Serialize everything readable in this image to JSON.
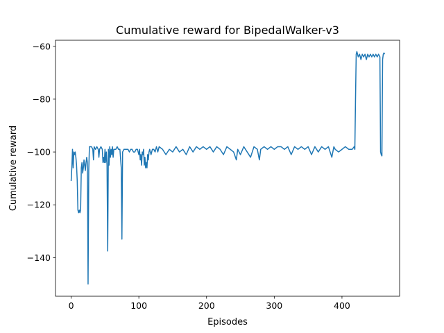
{
  "chart_data": {
    "type": "line",
    "title": "Cumulative reward for BipedalWalker-v3",
    "xlabel": "Episodes",
    "ylabel": "Cumulative reward",
    "xlim": [
      -23.1,
      485.1
    ],
    "ylim": [
      -154.6,
      -57.7
    ],
    "xticks": [
      0,
      100,
      200,
      300,
      400
    ],
    "yticks": [
      -140,
      -120,
      -100,
      -80,
      -60
    ],
    "xtick_labels": [
      "0",
      "100",
      "200",
      "300",
      "400"
    ],
    "ytick_labels": [
      "−140",
      "−120",
      "−100",
      "−80",
      "−60"
    ],
    "grid": false,
    "legend": "none",
    "series": [
      {
        "color": "#1f77b4",
        "points": [
          [
            0,
            -111
          ],
          [
            1,
            -106
          ],
          [
            2,
            -99
          ],
          [
            3,
            -106
          ],
          [
            4,
            -100
          ],
          [
            5,
            -101
          ],
          [
            6,
            -100
          ],
          [
            7,
            -102
          ],
          [
            8,
            -105
          ],
          [
            9,
            -111
          ],
          [
            10,
            -122
          ],
          [
            11,
            -123
          ],
          [
            12,
            -122
          ],
          [
            13,
            -123
          ],
          [
            14,
            -122
          ],
          [
            15,
            -106
          ],
          [
            16,
            -104
          ],
          [
            17,
            -108
          ],
          [
            18,
            -106
          ],
          [
            19,
            -103
          ],
          [
            20,
            -105
          ],
          [
            21,
            -107
          ],
          [
            22,
            -104
          ],
          [
            23,
            -102
          ],
          [
            24,
            -104
          ],
          [
            25,
            -150
          ],
          [
            26,
            -107
          ],
          [
            27,
            -98
          ],
          [
            28,
            -98
          ],
          [
            30,
            -98
          ],
          [
            32,
            -99
          ],
          [
            33,
            -103
          ],
          [
            34,
            -98
          ],
          [
            36,
            -99
          ],
          [
            38,
            -98
          ],
          [
            40,
            -99
          ],
          [
            41,
            -102
          ],
          [
            42,
            -99
          ],
          [
            44,
            -98
          ],
          [
            46,
            -99
          ],
          [
            47,
            -104
          ],
          [
            48,
            -102
          ],
          [
            49,
            -104
          ],
          [
            50,
            -99
          ],
          [
            51,
            -104
          ],
          [
            52,
            -100
          ],
          [
            53,
            -105
          ],
          [
            54,
            -137.5
          ],
          [
            55,
            -99
          ],
          [
            56,
            -105
          ],
          [
            57,
            -98
          ],
          [
            58,
            -102
          ],
          [
            59,
            -99
          ],
          [
            60,
            -101
          ],
          [
            61,
            -98
          ],
          [
            62,
            -102
          ],
          [
            63,
            -99
          ],
          [
            64,
            -99
          ],
          [
            66,
            -99
          ],
          [
            68,
            -98
          ],
          [
            70,
            -99
          ],
          [
            72,
            -99
          ],
          [
            74,
            -106
          ],
          [
            75,
            -133
          ],
          [
            76,
            -100
          ],
          [
            78,
            -99
          ],
          [
            80,
            -99
          ],
          [
            82,
            -99
          ],
          [
            84,
            -99
          ],
          [
            86,
            -100
          ],
          [
            88,
            -99
          ],
          [
            90,
            -99
          ],
          [
            92,
            -100
          ],
          [
            94,
            -100
          ],
          [
            96,
            -99
          ],
          [
            98,
            -99
          ],
          [
            100,
            -101
          ],
          [
            101,
            -99
          ],
          [
            102,
            -103
          ],
          [
            103,
            -101
          ],
          [
            104,
            -105
          ],
          [
            105,
            -100
          ],
          [
            106,
            -101
          ],
          [
            107,
            -99
          ],
          [
            108,
            -105
          ],
          [
            109,
            -102
          ],
          [
            110,
            -106
          ],
          [
            111,
            -104
          ],
          [
            112,
            -106
          ],
          [
            113,
            -101
          ],
          [
            114,
            -103
          ],
          [
            115,
            -100
          ],
          [
            116,
            -99
          ],
          [
            118,
            -101
          ],
          [
            120,
            -99
          ],
          [
            122,
            -99
          ],
          [
            124,
            -100
          ],
          [
            126,
            -98
          ],
          [
            128,
            -100
          ],
          [
            130,
            -98
          ],
          [
            135,
            -99
          ],
          [
            140,
            -101
          ],
          [
            145,
            -99
          ],
          [
            150,
            -100
          ],
          [
            155,
            -98
          ],
          [
            160,
            -100
          ],
          [
            165,
            -99
          ],
          [
            170,
            -101
          ],
          [
            175,
            -98
          ],
          [
            180,
            -100
          ],
          [
            185,
            -98
          ],
          [
            190,
            -99
          ],
          [
            195,
            -98
          ],
          [
            200,
            -99
          ],
          [
            205,
            -98
          ],
          [
            210,
            -100
          ],
          [
            215,
            -98
          ],
          [
            220,
            -99
          ],
          [
            225,
            -101
          ],
          [
            230,
            -98
          ],
          [
            235,
            -99
          ],
          [
            240,
            -100
          ],
          [
            244,
            -103
          ],
          [
            246,
            -99
          ],
          [
            250,
            -101
          ],
          [
            255,
            -98
          ],
          [
            260,
            -100
          ],
          [
            265,
            -102
          ],
          [
            270,
            -98
          ],
          [
            275,
            -99
          ],
          [
            278,
            -103
          ],
          [
            280,
            -99
          ],
          [
            285,
            -98
          ],
          [
            290,
            -99
          ],
          [
            295,
            -98
          ],
          [
            300,
            -99
          ],
          [
            305,
            -98
          ],
          [
            310,
            -98
          ],
          [
            315,
            -99
          ],
          [
            320,
            -98
          ],
          [
            325,
            -101
          ],
          [
            330,
            -98
          ],
          [
            335,
            -99
          ],
          [
            340,
            -98
          ],
          [
            345,
            -99
          ],
          [
            350,
            -98
          ],
          [
            355,
            -101
          ],
          [
            360,
            -98
          ],
          [
            365,
            -100
          ],
          [
            370,
            -98
          ],
          [
            375,
            -99
          ],
          [
            380,
            -98
          ],
          [
            385,
            -102
          ],
          [
            388,
            -98
          ],
          [
            390,
            -99
          ],
          [
            395,
            -100
          ],
          [
            400,
            -99
          ],
          [
            405,
            -98
          ],
          [
            410,
            -99
          ],
          [
            415,
            -99
          ],
          [
            418,
            -98
          ],
          [
            419,
            -99
          ],
          [
            420,
            -80
          ],
          [
            421,
            -63
          ],
          [
            422,
            -62
          ],
          [
            424,
            -64
          ],
          [
            426,
            -63
          ],
          [
            428,
            -65
          ],
          [
            430,
            -63
          ],
          [
            432,
            -64
          ],
          [
            434,
            -63
          ],
          [
            436,
            -65
          ],
          [
            438,
            -63
          ],
          [
            440,
            -64
          ],
          [
            442,
            -63
          ],
          [
            444,
            -64
          ],
          [
            446,
            -63
          ],
          [
            448,
            -64
          ],
          [
            450,
            -63
          ],
          [
            452,
            -64
          ],
          [
            454,
            -63
          ],
          [
            456,
            -64
          ],
          [
            457,
            -100
          ],
          [
            458,
            -101
          ],
          [
            459,
            -101.5
          ],
          [
            460,
            -65
          ],
          [
            461,
            -63
          ],
          [
            462,
            -62.5
          ],
          [
            463,
            -63
          ]
        ]
      }
    ]
  }
}
